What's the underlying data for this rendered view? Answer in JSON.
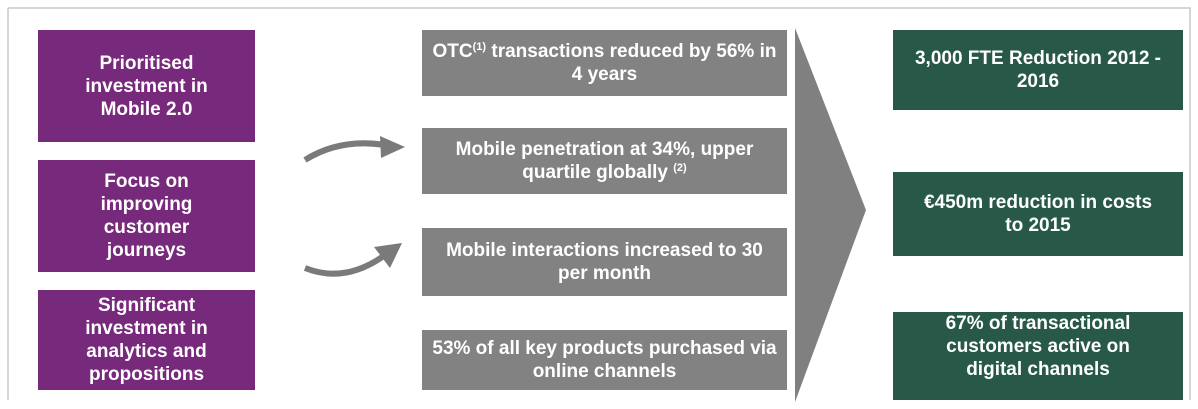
{
  "left_boxes": [
    {
      "label": "Prioritised investment in Mobile 2.0"
    },
    {
      "label": "Focus on improving customer journeys"
    },
    {
      "label": "Significant investment in analytics and propositions"
    }
  ],
  "middle_boxes": [
    {
      "before": "OTC",
      "note": "(1)",
      "after": "transactions reduced by 56% in 4 years"
    },
    {
      "before": "Mobile penetration at 34%, upper quartile globally",
      "note": "(2)"
    },
    {
      "before": "Mobile interactions increased to 30 per month"
    },
    {
      "before": "53% of all key products purchased via online channels"
    }
  ],
  "right_boxes": [
    {
      "label": "3,000 FTE Reduction 2012 - 2016"
    },
    {
      "label": "€450m reduction in costs to 2015"
    },
    {
      "label": "67% of transactional customers active on digital channels"
    }
  ]
}
